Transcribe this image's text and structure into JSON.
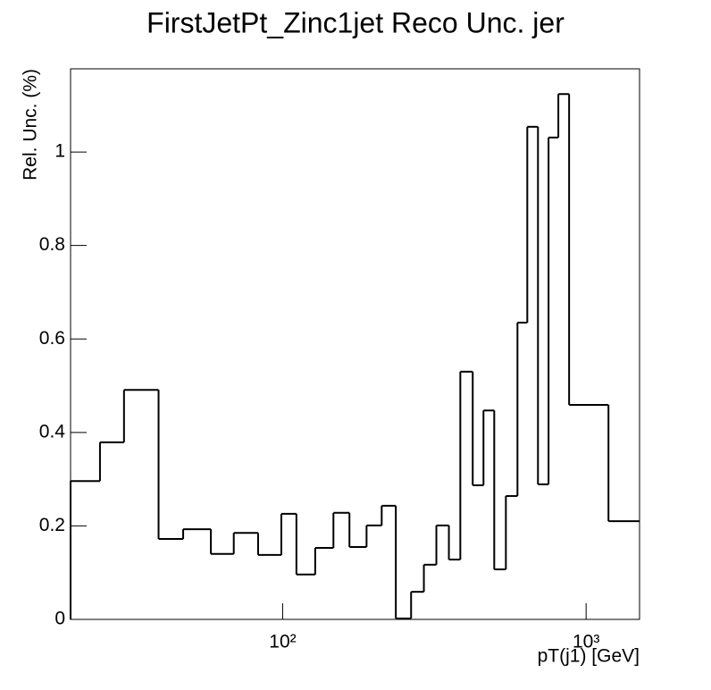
{
  "chart_data": {
    "type": "histogram",
    "title": "FirstJetPt_Zinc1jet Reco Unc. jer",
    "x_label": "pT(j1) [GeV]",
    "y_label": "Rel. Unc. (%)",
    "x_log": true,
    "color": "#000000",
    "bins": [
      20,
      25,
      30,
      39,
      47,
      58,
      69,
      83,
      99,
      111,
      128,
      147,
      166,
      189,
      212,
      236,
      265,
      292,
      321,
      353,
      385,
      423,
      459,
      498,
      544,
      594,
      640,
      694,
      752,
      810,
      879,
      1185,
      1500
    ],
    "values": [
      0.296,
      0.379,
      0.491,
      0.172,
      0.193,
      0.14,
      0.185,
      0.138,
      0.226,
      0.096,
      0.153,
      0.228,
      0.155,
      0.201,
      0.243,
      0.002,
      0.059,
      0.117,
      0.201,
      0.128,
      0.53,
      0.287,
      0.447,
      0.107,
      0.264,
      0.635,
      1.054,
      0.289,
      1.031,
      1.124,
      0.459,
      0.21
    ],
    "xlim": [
      20,
      1500
    ],
    "ylim": [
      0,
      1.178
    ],
    "xticks": [
      {
        "value": 100,
        "label": "10²"
      },
      {
        "value": 1000,
        "label": "10³"
      }
    ],
    "yticks": [
      0,
      0.2,
      0.4,
      0.6,
      0.8,
      1
    ]
  }
}
